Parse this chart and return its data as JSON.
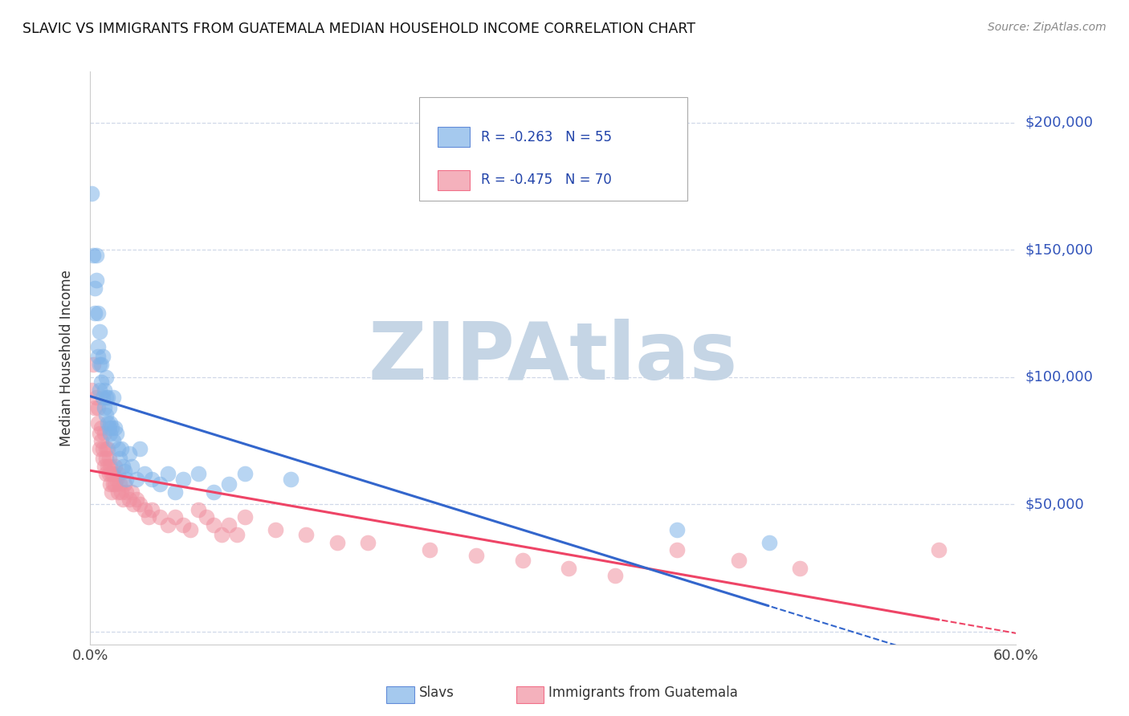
{
  "title": "SLAVIC VS IMMIGRANTS FROM GUATEMALA MEDIAN HOUSEHOLD INCOME CORRELATION CHART",
  "source": "Source: ZipAtlas.com",
  "ylabel": "Median Household Income",
  "xlim": [
    0.0,
    0.6
  ],
  "ylim": [
    -5000,
    220000
  ],
  "yticks": [
    0,
    50000,
    100000,
    150000,
    200000
  ],
  "ytick_labels": [
    "",
    "$50,000",
    "$100,000",
    "$150,000",
    "$200,000"
  ],
  "xticks": [
    0.0,
    0.1,
    0.2,
    0.3,
    0.4,
    0.5,
    0.6
  ],
  "bg_color": "#ffffff",
  "grid_color": "#d0d8e8",
  "watermark": "ZIPAtlas",
  "watermark_color": "#c5d5e5",
  "slavs_color": "#7fb3e8",
  "guatemala_color": "#f090a0",
  "slavs_line_color": "#3366cc",
  "guatemala_line_color": "#ee4466",
  "legend_text_color": "#2244aa",
  "legend_slavs_label": "R = -0.263   N = 55",
  "legend_guatemala_label": "R = -0.475   N = 70",
  "right_ytick_color": "#3355bb",
  "slavs_x": [
    0.001,
    0.002,
    0.003,
    0.003,
    0.004,
    0.004,
    0.005,
    0.005,
    0.005,
    0.006,
    0.006,
    0.006,
    0.007,
    0.007,
    0.008,
    0.008,
    0.009,
    0.009,
    0.01,
    0.01,
    0.01,
    0.011,
    0.011,
    0.012,
    0.012,
    0.013,
    0.013,
    0.014,
    0.015,
    0.015,
    0.016,
    0.017,
    0.018,
    0.019,
    0.02,
    0.021,
    0.022,
    0.023,
    0.025,
    0.027,
    0.03,
    0.032,
    0.035,
    0.04,
    0.045,
    0.05,
    0.055,
    0.06,
    0.07,
    0.08,
    0.09,
    0.1,
    0.13,
    0.38,
    0.44
  ],
  "slavs_y": [
    172000,
    148000,
    135000,
    125000,
    148000,
    138000,
    125000,
    112000,
    108000,
    118000,
    105000,
    95000,
    105000,
    98000,
    108000,
    92000,
    95000,
    88000,
    100000,
    92000,
    85000,
    92000,
    82000,
    88000,
    80000,
    82000,
    78000,
    80000,
    92000,
    75000,
    80000,
    78000,
    72000,
    68000,
    72000,
    65000,
    63000,
    60000,
    70000,
    65000,
    60000,
    72000,
    62000,
    60000,
    58000,
    62000,
    55000,
    60000,
    62000,
    55000,
    58000,
    62000,
    60000,
    40000,
    35000
  ],
  "guatemala_x": [
    0.001,
    0.002,
    0.003,
    0.004,
    0.005,
    0.005,
    0.006,
    0.006,
    0.007,
    0.007,
    0.008,
    0.008,
    0.009,
    0.009,
    0.01,
    0.01,
    0.01,
    0.011,
    0.011,
    0.012,
    0.012,
    0.013,
    0.013,
    0.014,
    0.014,
    0.015,
    0.015,
    0.016,
    0.016,
    0.017,
    0.018,
    0.018,
    0.019,
    0.02,
    0.021,
    0.022,
    0.023,
    0.025,
    0.027,
    0.028,
    0.03,
    0.032,
    0.035,
    0.038,
    0.04,
    0.045,
    0.05,
    0.055,
    0.06,
    0.065,
    0.07,
    0.075,
    0.08,
    0.085,
    0.09,
    0.095,
    0.1,
    0.12,
    0.14,
    0.16,
    0.18,
    0.22,
    0.25,
    0.28,
    0.31,
    0.34,
    0.38,
    0.42,
    0.46,
    0.55
  ],
  "guatemala_y": [
    95000,
    105000,
    88000,
    92000,
    82000,
    88000,
    78000,
    72000,
    80000,
    75000,
    72000,
    68000,
    78000,
    65000,
    72000,
    68000,
    62000,
    72000,
    65000,
    68000,
    62000,
    65000,
    58000,
    62000,
    55000,
    58000,
    62000,
    65000,
    58000,
    60000,
    55000,
    62000,
    58000,
    55000,
    52000,
    58000,
    55000,
    52000,
    55000,
    50000,
    52000,
    50000,
    48000,
    45000,
    48000,
    45000,
    42000,
    45000,
    42000,
    40000,
    48000,
    45000,
    42000,
    38000,
    42000,
    38000,
    45000,
    40000,
    38000,
    35000,
    35000,
    32000,
    30000,
    28000,
    25000,
    22000,
    32000,
    28000,
    25000,
    32000
  ]
}
